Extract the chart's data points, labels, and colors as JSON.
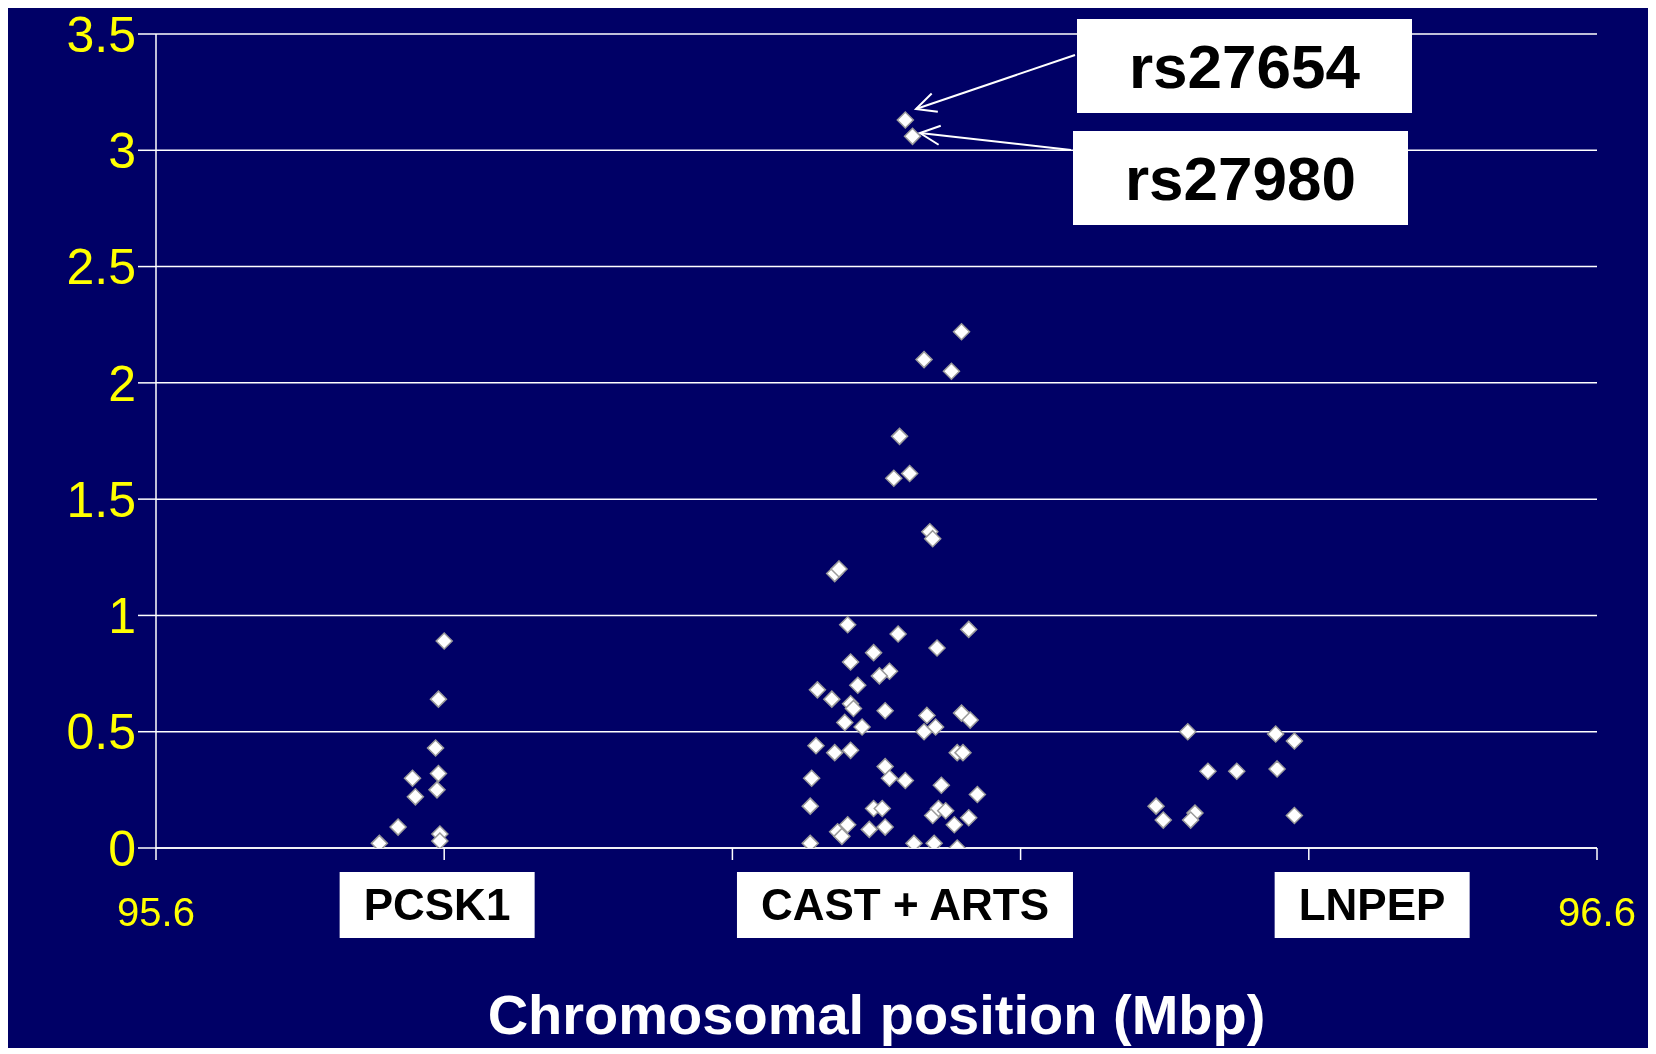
{
  "chart_data": {
    "type": "scatter",
    "xlabel": "Chromosomal position  (Mbp)",
    "xlim": [
      95.6,
      96.6
    ],
    "xticks": [
      95.6,
      {
        "value": 95.8,
        "label": null
      },
      {
        "value": 96.0,
        "label": null
      },
      {
        "value": 96.2,
        "label": null
      },
      {
        "value": 96.4,
        "label": null
      },
      96.6
    ],
    "ylim": [
      0,
      3.5
    ],
    "yticks": [
      0,
      0.5,
      1,
      1.5,
      2,
      2.5,
      3,
      3.5
    ],
    "grid": "y",
    "marker": "diamond",
    "legend": false,
    "series": [
      {
        "color": "#ffffff",
        "x": [
          95.8,
          95.796,
          95.794,
          95.778,
          95.796,
          95.78,
          95.795,
          95.768,
          95.755,
          95.797,
          95.797,
          96.12,
          96.125,
          96.159,
          96.133,
          96.152,
          96.116,
          96.112,
          96.123,
          96.137,
          96.139,
          96.071,
          96.074,
          96.08,
          96.164,
          96.115,
          96.142,
          96.098,
          96.082,
          96.109,
          96.102,
          96.087,
          96.059,
          96.069,
          96.082,
          96.084,
          96.106,
          96.078,
          96.135,
          96.159,
          96.165,
          96.09,
          96.133,
          96.141,
          96.058,
          96.071,
          96.082,
          96.156,
          96.16,
          96.106,
          96.109,
          96.12,
          96.055,
          96.145,
          96.17,
          96.054,
          96.098,
          96.104,
          96.139,
          96.143,
          96.148,
          96.164,
          96.154,
          96.08,
          96.073,
          96.076,
          96.095,
          96.106,
          96.054,
          96.126,
          96.14,
          96.156,
          96.316,
          96.377,
          96.39,
          96.33,
          96.35,
          96.378,
          96.294,
          96.299,
          96.321,
          96.318,
          96.39
        ],
        "values": [
          0.89,
          0.64,
          0.43,
          0.3,
          0.32,
          0.22,
          0.25,
          0.09,
          0.02,
          0.06,
          0.03,
          3.13,
          3.06,
          2.22,
          2.1,
          2.05,
          1.77,
          1.59,
          1.61,
          1.36,
          1.33,
          1.18,
          1.2,
          0.96,
          0.94,
          0.92,
          0.86,
          0.84,
          0.8,
          0.76,
          0.74,
          0.7,
          0.68,
          0.64,
          0.62,
          0.6,
          0.59,
          0.54,
          0.57,
          0.58,
          0.55,
          0.52,
          0.5,
          0.52,
          0.44,
          0.41,
          0.42,
          0.41,
          0.41,
          0.35,
          0.3,
          0.29,
          0.3,
          0.27,
          0.23,
          0.18,
          0.17,
          0.17,
          0.14,
          0.17,
          0.16,
          0.13,
          0.1,
          0.1,
          0.07,
          0.05,
          0.08,
          0.09,
          0.02,
          0.02,
          0.02,
          0,
          0.5,
          0.49,
          0.46,
          0.33,
          0.33,
          0.34,
          0.18,
          0.12,
          0.15,
          0.12,
          0.14
        ]
      }
    ],
    "annotations": [
      "rs27654",
      "rs27980",
      "PCSK1",
      "CAST + ARTS",
      "LNPEP"
    ]
  }
}
